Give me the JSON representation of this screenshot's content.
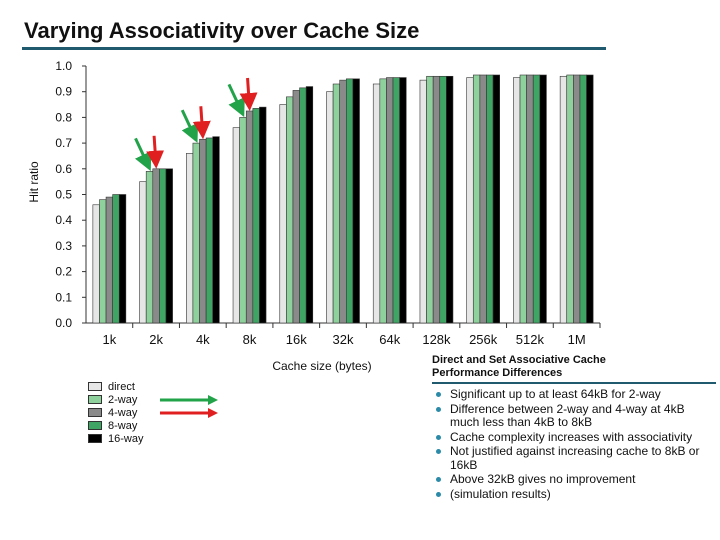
{
  "title": "Varying Associativity over Cache Size",
  "chart_data": {
    "type": "bar",
    "categories": [
      "1k",
      "2k",
      "4k",
      "8k",
      "16k",
      "32k",
      "64k",
      "128k",
      "256k",
      "512k",
      "1M"
    ],
    "series": [
      {
        "name": "direct",
        "color": "#e6e6e6",
        "values": [
          0.46,
          0.55,
          0.66,
          0.76,
          0.85,
          0.9,
          0.93,
          0.945,
          0.955,
          0.955,
          0.96
        ]
      },
      {
        "name": "2-way",
        "color": "#8fd19c",
        "values": [
          0.48,
          0.59,
          0.7,
          0.8,
          0.88,
          0.93,
          0.95,
          0.96,
          0.965,
          0.965,
          0.965
        ]
      },
      {
        "name": "4-way",
        "color": "#8a8a8a",
        "values": [
          0.49,
          0.6,
          0.715,
          0.825,
          0.905,
          0.945,
          0.955,
          0.96,
          0.965,
          0.965,
          0.965
        ]
      },
      {
        "name": "8-way",
        "color": "#3fa564",
        "values": [
          0.5,
          0.6,
          0.72,
          0.835,
          0.915,
          0.95,
          0.955,
          0.96,
          0.965,
          0.965,
          0.965
        ]
      },
      {
        "name": "16-way",
        "color": "#000000",
        "values": [
          0.5,
          0.6,
          0.725,
          0.84,
          0.92,
          0.95,
          0.955,
          0.96,
          0.965,
          0.965,
          0.965
        ]
      }
    ],
    "yticks": [
      "0.0",
      "0.1",
      "0.2",
      "0.3",
      "0.4",
      "0.5",
      "0.6",
      "0.7",
      "0.8",
      "0.9",
      "1.0"
    ],
    "ylim": [
      0,
      1.0
    ],
    "xlabel": "Cache size (bytes)",
    "ylabel": "Hit ratio",
    "annotations": [
      {
        "type": "arrow",
        "color": "#22a34a",
        "category": "2k",
        "series": "2-way"
      },
      {
        "type": "arrow",
        "color": "#e02020",
        "category": "2k",
        "series": "4-way"
      },
      {
        "type": "arrow",
        "color": "#22a34a",
        "category": "4k",
        "series": "2-way"
      },
      {
        "type": "arrow",
        "color": "#e02020",
        "category": "4k",
        "series": "4-way"
      },
      {
        "type": "arrow",
        "color": "#22a34a",
        "category": "8k",
        "series": "2-way"
      },
      {
        "type": "arrow",
        "color": "#e02020",
        "category": "8k",
        "series": "4-way"
      }
    ]
  },
  "legend": {
    "items": [
      {
        "label": "direct",
        "color": "#e6e6e6",
        "arrow": null
      },
      {
        "label": "2-way",
        "color": "#8fd19c",
        "arrow": "#22a34a"
      },
      {
        "label": "4-way",
        "color": "#8a8a8a",
        "arrow": "#e02020"
      },
      {
        "label": "8-way",
        "color": "#3fa564",
        "arrow": null
      },
      {
        "label": "16-way",
        "color": "#000000",
        "arrow": null
      }
    ]
  },
  "notes": {
    "heading_line1": "Direct and Set Associative Cache",
    "heading_line2": "Performance Differences",
    "bullets": [
      "Significant up to at least 64kB for 2-way",
      "Difference between 2-way and 4-way at 4kB much less than 4kB to 8kB",
      "Cache complexity increases with associativity",
      "Not justified against increasing cache to 8kB or 16kB",
      "Above 32kB gives no improvement",
      "(simulation results)"
    ]
  }
}
